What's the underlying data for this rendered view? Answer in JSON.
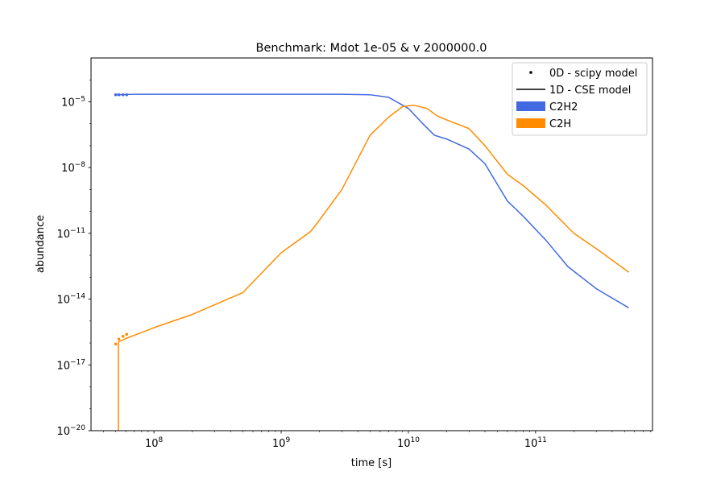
{
  "chart_data": {
    "type": "line",
    "title": "Benchmark: Mdot 1e-05 & v 2000000.0",
    "xlabel": "time [s]",
    "ylabel": "abundance",
    "xscale": "log",
    "yscale": "log",
    "xlim": [
      32000000.0,
      830000000000.0
    ],
    "ylim": [
      1e-20,
      0.001
    ],
    "x_ticks": [
      {
        "value": 100000000.0,
        "base": "10",
        "exp": "8"
      },
      {
        "value": 1000000000.0,
        "base": "10",
        "exp": "9"
      },
      {
        "value": 10000000000.0,
        "base": "10",
        "exp": "10"
      },
      {
        "value": 100000000000.0,
        "base": "10",
        "exp": "11"
      }
    ],
    "y_ticks": [
      {
        "value": 1e-20,
        "base": "10",
        "exp": "−20"
      },
      {
        "value": 1e-17,
        "base": "10",
        "exp": "−17"
      },
      {
        "value": 1e-14,
        "base": "10",
        "exp": "−14"
      },
      {
        "value": 1e-11,
        "base": "10",
        "exp": "−11"
      },
      {
        "value": 1e-08,
        "base": "10",
        "exp": "−8"
      },
      {
        "value": 1e-05,
        "base": "10",
        "exp": "−5"
      }
    ],
    "grid": false,
    "legend_position": "top-right",
    "legend": [
      {
        "label": "0D - scipy model",
        "kind": "marker",
        "color": "#000000"
      },
      {
        "label": "1D - CSE model",
        "kind": "line",
        "color": "#000000"
      },
      {
        "label": "C2H2",
        "kind": "patch",
        "color": "#4169e1"
      },
      {
        "label": "C2H",
        "kind": "patch",
        "color": "#ff8c00"
      }
    ],
    "series": [
      {
        "name": "C2H2",
        "model": "1D - CSE model",
        "kind": "line",
        "color": "#4169e1",
        "x": [
          50000000.0,
          70000000.0,
          100000000.0,
          300000000.0,
          1000000000.0,
          3000000000.0,
          5000000000.0,
          7000000000.0,
          10000000000.0,
          13000000000.0,
          16000000000.0,
          20000000000.0,
          30000000000.0,
          40000000000.0,
          60000000000.0,
          80000000000.0,
          120000000000.0,
          180000000000.0,
          300000000000.0,
          540000000000.0
        ],
        "y": [
          2.1e-05,
          2.2e-05,
          2.2e-05,
          2.2e-05,
          2.2e-05,
          2.2e-05,
          2.1e-05,
          1.6e-05,
          5e-06,
          1e-06,
          3e-07,
          2e-07,
          7e-08,
          1.5e-08,
          3e-10,
          6e-11,
          5e-12,
          3e-13,
          3e-14,
          4e-15
        ]
      },
      {
        "name": "C2H",
        "model": "1D - CSE model",
        "kind": "line",
        "color": "#ff8c00",
        "x": [
          52500000.0,
          52500000.0,
          54000000.0,
          60000000.0,
          80000000.0,
          100000000.0,
          200000000.0,
          500000000.0,
          1000000000.0,
          1700000000.0,
          2000000000.0,
          3000000000.0,
          5000000000.0,
          7000000000.0,
          9000000000.0,
          11000000000.0,
          14000000000.0,
          17000000000.0,
          20000000000.0,
          30000000000.0,
          40000000000.0,
          60000000000.0,
          80000000000.0,
          120000000000.0,
          200000000000.0,
          300000000000.0,
          540000000000.0
        ],
        "y": [
          1e-20,
          1.1e-16,
          1.2e-16,
          1.6e-16,
          3e-16,
          5e-16,
          2e-15,
          2e-14,
          1.3e-12,
          1.2e-11,
          4e-11,
          1e-09,
          3e-07,
          2e-06,
          6e-06,
          7e-06,
          5e-06,
          2.2e-06,
          1.5e-06,
          6e-07,
          1e-07,
          5e-09,
          1.5e-09,
          2e-10,
          1e-11,
          2e-12,
          1.7e-13
        ]
      },
      {
        "name": "C2H2",
        "model": "0D - scipy model",
        "kind": "scatter",
        "color": "#4169e1",
        "x": [
          50000000.0,
          53000000.0,
          57000000.0,
          61000000.0
        ],
        "y": [
          2.1e-05,
          2.1e-05,
          2.1e-05,
          2.1e-05
        ]
      },
      {
        "name": "C2H",
        "model": "0D - scipy model",
        "kind": "scatter",
        "color": "#ff8c00",
        "x": [
          50000000.0,
          53000000.0,
          57000000.0,
          61000000.0
        ],
        "y": [
          9e-17,
          1.5e-16,
          2e-16,
          2.5e-16
        ]
      }
    ]
  }
}
